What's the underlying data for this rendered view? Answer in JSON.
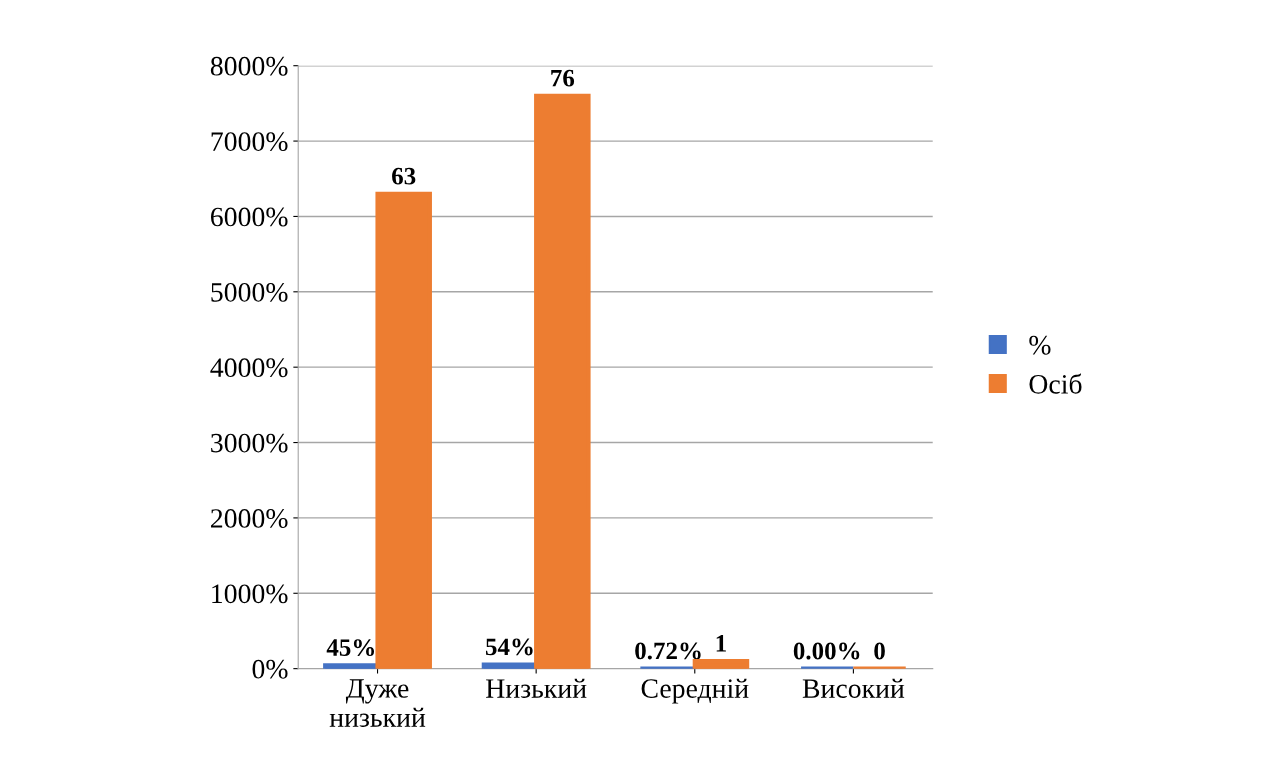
{
  "chart_data": {
    "type": "bar",
    "categories": [
      "Дуже низький",
      "Низький",
      "Середній",
      "Високий"
    ],
    "series": [
      {
        "name": "%",
        "color": "#4472c4",
        "values": [
          0.45,
          0.54,
          0.0072,
          0
        ],
        "value_labels": [
          "45%",
          "54%",
          "0.72%",
          "0.00%"
        ]
      },
      {
        "name": "Осіб",
        "color": "#ed7d31",
        "values": [
          63,
          76,
          1,
          0
        ],
        "value_labels": [
          "63",
          "76",
          "1",
          "0"
        ]
      }
    ],
    "ylim": [
      0,
      80
    ],
    "yticks": [
      {
        "value": 0,
        "label": "0%"
      },
      {
        "value": 10,
        "label": "1000%"
      },
      {
        "value": 20,
        "label": "2000%"
      },
      {
        "value": 30,
        "label": "3000%"
      },
      {
        "value": 40,
        "label": "4000%"
      },
      {
        "value": 50,
        "label": "5000%"
      },
      {
        "value": 60,
        "label": "6000%"
      },
      {
        "value": 70,
        "label": "7000%"
      },
      {
        "value": 80,
        "label": "8000%"
      }
    ],
    "grid": "y",
    "legend": "right"
  }
}
